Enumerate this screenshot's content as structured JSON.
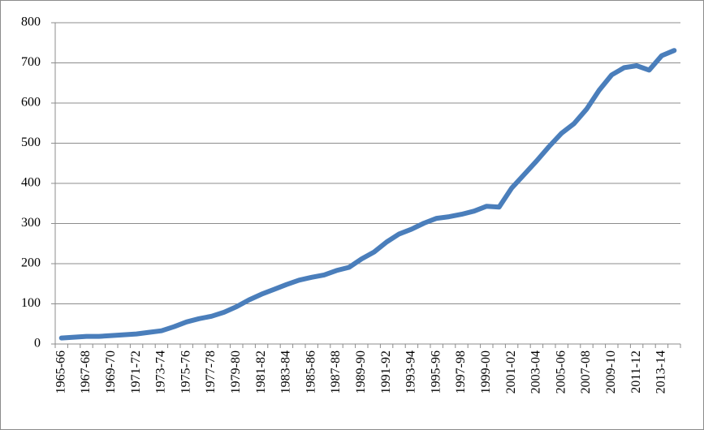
{
  "chart_data": {
    "type": "line",
    "categories": [
      "1965-66",
      null,
      "1967-68",
      null,
      "1969-70",
      null,
      "1971-72",
      null,
      "1973-74",
      null,
      "1975-76",
      null,
      "1977-78",
      null,
      "1979-80",
      null,
      "1981-82",
      null,
      "1983-84",
      null,
      "1985-86",
      null,
      "1987-88",
      null,
      "1989-90",
      null,
      "1991-92",
      null,
      "1993-94",
      null,
      "1995-96",
      null,
      "1997-98",
      null,
      "1999-00",
      null,
      "2001-02",
      null,
      "2003-04",
      null,
      "2005-06",
      null,
      "2007-08",
      null,
      "2009-10",
      null,
      "2011-12",
      null,
      "2013-14",
      null
    ],
    "values": [
      15,
      17,
      19,
      19,
      21,
      23,
      25,
      29,
      33,
      43,
      55,
      63,
      69,
      79,
      93,
      110,
      124,
      136,
      148,
      159,
      166,
      172,
      183,
      191,
      212,
      229,
      254,
      274,
      286,
      301,
      313,
      317,
      323,
      331,
      343,
      341,
      388,
      422,
      456,
      492,
      525,
      549,
      585,
      632,
      670,
      688,
      693,
      682,
      718,
      731
    ],
    "color": "#4a7ebb",
    "ylim": [
      0,
      800
    ],
    "yticks": [
      0,
      100,
      200,
      300,
      400,
      500,
      600,
      700,
      800
    ],
    "grid": true
  }
}
